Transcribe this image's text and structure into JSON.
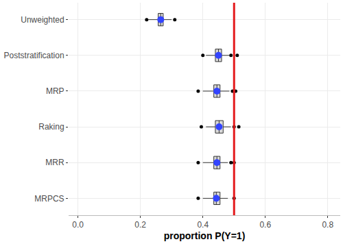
{
  "chart_data": {
    "type": "box",
    "orientation": "horizontal",
    "x_label": "proportion P(Y=1)",
    "categories": [
      "Unweighted",
      "Poststratification",
      "MRP",
      "Raking",
      "MRR",
      "MRPCS"
    ],
    "lower": [
      0.225,
      0.41,
      0.4,
      0.41,
      0.4,
      0.4
    ],
    "q1": [
      0.257,
      0.44,
      0.435,
      0.44,
      0.435,
      0.435
    ],
    "median": [
      0.265,
      0.45,
      0.445,
      0.452,
      0.445,
      0.443
    ],
    "q3": [
      0.273,
      0.46,
      0.455,
      0.465,
      0.455,
      0.455
    ],
    "upper": [
      0.3,
      0.485,
      0.485,
      0.49,
      0.48,
      0.48
    ],
    "outliers": [
      [
        0.22,
        0.31
      ],
      [
        0.4,
        0.49,
        0.51
      ],
      [
        0.385,
        0.495,
        0.505
      ],
      [
        0.395,
        0.5,
        0.515
      ],
      [
        0.385,
        0.49,
        0.5
      ],
      [
        0.385,
        0.5
      ]
    ],
    "means": [
      0.265,
      0.45,
      0.445,
      0.452,
      0.445,
      0.443
    ],
    "color": "#d9d9d9",
    "vline": {
      "value": 0.5,
      "color": "#e41a1c"
    },
    "xlim": [
      -0.03,
      0.84
    ],
    "xticks": [
      {
        "value": 0,
        "label": "0.0"
      },
      0.2,
      0.4,
      0.6,
      0.8
    ],
    "grid": true
  }
}
